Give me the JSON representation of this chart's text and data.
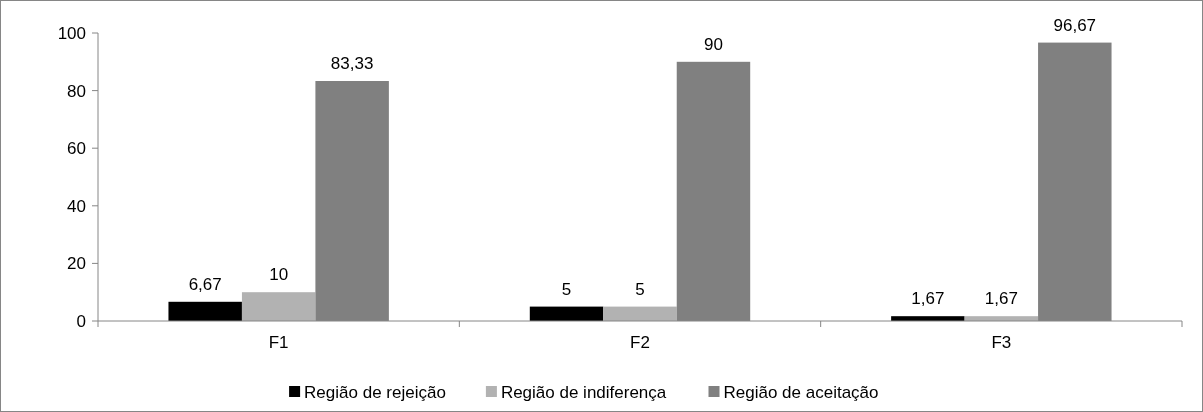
{
  "chart_data": {
    "type": "bar",
    "categories": [
      "F1",
      "F2",
      "F3"
    ],
    "series": [
      {
        "name": "Região de rejeição",
        "color": "#000000",
        "values": [
          6.67,
          5,
          1.67
        ],
        "value_labels": [
          "6,67",
          "5",
          "1,67"
        ]
      },
      {
        "name": "Região de indiferença",
        "color": "#b2b2b2",
        "values": [
          10,
          5,
          1.67
        ],
        "value_labels": [
          "10",
          "5",
          "1,67"
        ]
      },
      {
        "name": "Região de aceitação",
        "color": "#808080",
        "values": [
          83.33,
          90,
          96.67
        ],
        "value_labels": [
          "83,33",
          "90",
          "96,67"
        ]
      }
    ],
    "ylim": [
      0,
      100
    ],
    "yticks": [
      0,
      20,
      40,
      60,
      80,
      100
    ],
    "grid": false,
    "legend": "bottom"
  }
}
